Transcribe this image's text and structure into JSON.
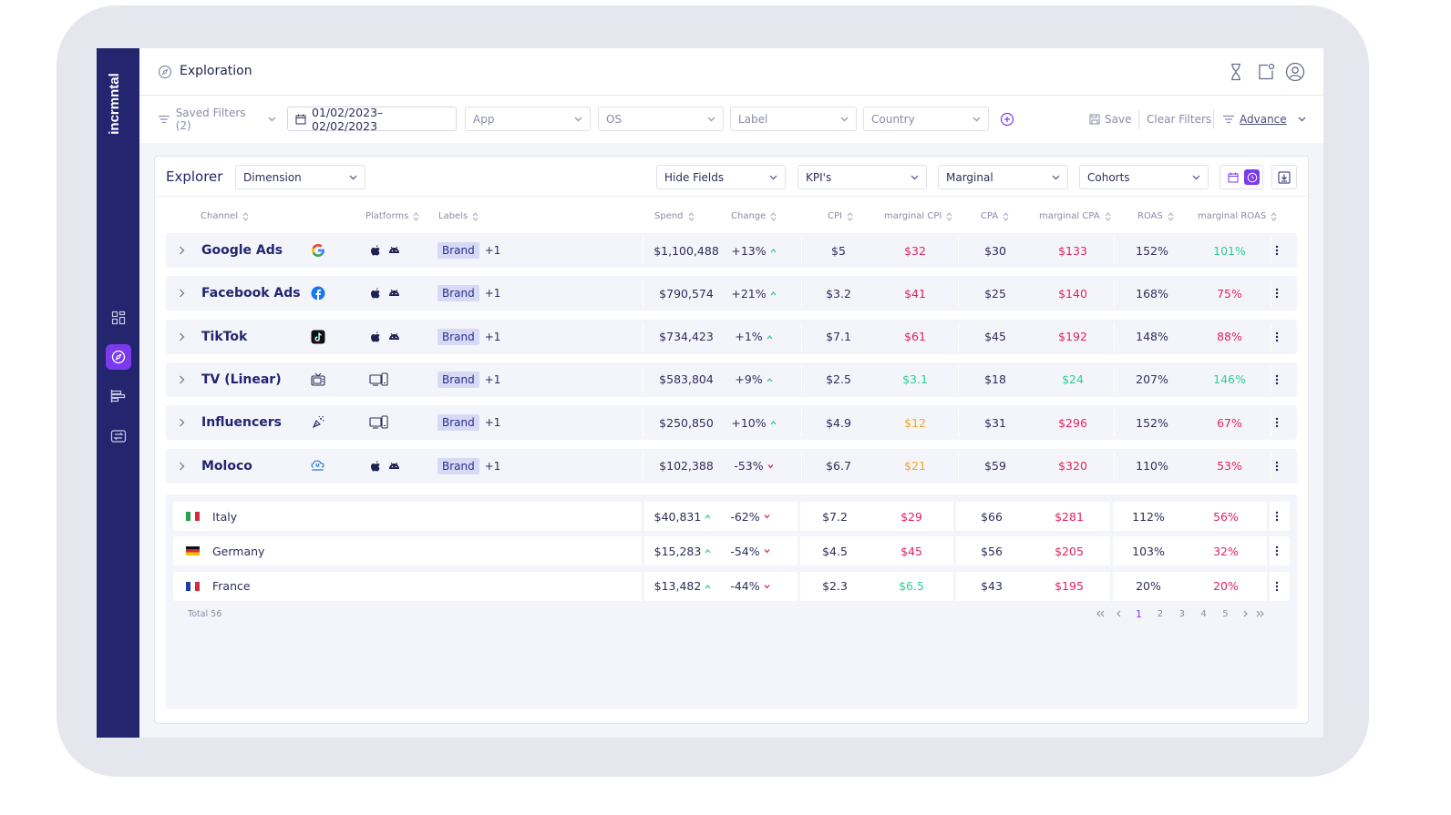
{
  "app": {
    "logo_text": "incrmntal",
    "page_title": "Exploration"
  },
  "filters": {
    "saved_filters": "Saved Filters (2)",
    "date_range": "01/02/2023–02/02/2023",
    "app_placeholder": "App",
    "os_placeholder": "OS",
    "label_placeholder": "Label",
    "country_placeholder": "Country",
    "save_label": "Save",
    "clear_filters_label": "Clear Filters",
    "advance_label": "Advance"
  },
  "explorer": {
    "title": "Explorer",
    "dimension": "Dimension",
    "hide_fields": "Hide Fields",
    "kpis": "KPI's",
    "marginal": "Marginal",
    "cohorts": "Cohorts"
  },
  "columns": {
    "channel": "Channel",
    "platforms": "Platforms",
    "labels": "Labels",
    "spend": "Spend",
    "change": "Change",
    "cpi": "CPI",
    "marginal_cpi": "marginal CPI",
    "cpa": "CPA",
    "marginal_cpa": "marginal CPA",
    "roas": "ROAS",
    "marginal_roas": "marginal ROAS"
  },
  "colors": {
    "red": "#e0245e",
    "green": "#2dcf8f",
    "yellow": "#f5a623",
    "accent": "#7c3aed",
    "sidebar": "#23256f"
  },
  "rows": [
    {
      "channel": "Google Ads",
      "icon": "google-icon",
      "platforms": "ios-android",
      "label": "Brand",
      "extra": "+1",
      "spend": "$1,100,488",
      "change": "+13%",
      "change_dir": "up",
      "cpi": "$5",
      "mcpi": "$32",
      "mcpi_color": "red",
      "cpa": "$30",
      "mcpa": "$133",
      "mcpa_color": "red",
      "roas": "152%",
      "mroas": "101%",
      "mroas_color": "green"
    },
    {
      "channel": "Facebook Ads",
      "icon": "facebook-icon",
      "platforms": "ios-android",
      "label": "Brand",
      "extra": "+1",
      "spend": "$790,574",
      "change": "+21%",
      "change_dir": "up",
      "cpi": "$3.2",
      "mcpi": "$41",
      "mcpi_color": "red",
      "cpa": "$25",
      "mcpa": "$140",
      "mcpa_color": "red",
      "roas": "168%",
      "mroas": "75%",
      "mroas_color": "red"
    },
    {
      "channel": "TikTok",
      "icon": "tiktok-icon",
      "platforms": "ios-android",
      "label": "Brand",
      "extra": "+1",
      "spend": "$734,423",
      "change": "+1%",
      "change_dir": "up",
      "cpi": "$7.1",
      "mcpi": "$61",
      "mcpi_color": "red",
      "cpa": "$45",
      "mcpa": "$192",
      "mcpa_color": "red",
      "roas": "148%",
      "mroas": "88%",
      "mroas_color": "red"
    },
    {
      "channel": "TV (Linear)",
      "icon": "tv-icon",
      "platforms": "devices",
      "label": "Brand",
      "extra": "+1",
      "spend": "$583,804",
      "change": "+9%",
      "change_dir": "up",
      "cpi": "$2.5",
      "mcpi": "$3.1",
      "mcpi_color": "green",
      "cpa": "$18",
      "mcpa": "$24",
      "mcpa_color": "green",
      "roas": "207%",
      "mroas": "146%",
      "mroas_color": "green"
    },
    {
      "channel": "Influencers",
      "icon": "influencer-icon",
      "platforms": "devices",
      "label": "Brand",
      "extra": "+1",
      "spend": "$250,850",
      "change": "+10%",
      "change_dir": "up",
      "cpi": "$4.9",
      "mcpi": "$12",
      "mcpi_color": "yellow",
      "cpa": "$31",
      "mcpa": "$296",
      "mcpa_color": "red",
      "roas": "152%",
      "mroas": "67%",
      "mroas_color": "red"
    },
    {
      "channel": "Moloco",
      "icon": "moloco-icon",
      "platforms": "ios-android",
      "label": "Brand",
      "extra": "+1",
      "spend": "$102,388",
      "change": "-53%",
      "change_dir": "down",
      "cpi": "$6.7",
      "mcpi": "$21",
      "mcpi_color": "yellow",
      "cpa": "$59",
      "mcpa": "$320",
      "mcpa_color": "red",
      "roas": "110%",
      "mroas": "53%",
      "mroas_color": "red"
    }
  ],
  "sub_rows": [
    {
      "country": "Italy",
      "flag": "italy-flag",
      "spend": "$40,831",
      "change": "-62%",
      "cpi": "$7.2",
      "mcpi": "$29",
      "mcpi_color": "red",
      "cpa": "$66",
      "mcpa": "$281",
      "roas": "112%",
      "mroas": "56%"
    },
    {
      "country": "Germany",
      "flag": "germany-flag",
      "spend": "$15,283",
      "change": "-54%",
      "cpi": "$4.5",
      "mcpi": "$45",
      "mcpi_color": "red",
      "cpa": "$56",
      "mcpa": "$205",
      "roas": "103%",
      "mroas": "32%"
    },
    {
      "country": "France",
      "flag": "france-flag",
      "spend": "$13,482",
      "change": "-44%",
      "cpi": "$2.3",
      "mcpi": "$6.5",
      "mcpi_color": "green",
      "cpa": "$43",
      "mcpa": "$195",
      "roas": "20%",
      "mroas": "20%"
    }
  ],
  "pagination": {
    "total": "Total 56",
    "pages": [
      "1",
      "2",
      "3",
      "4",
      "5"
    ],
    "current": "1"
  }
}
